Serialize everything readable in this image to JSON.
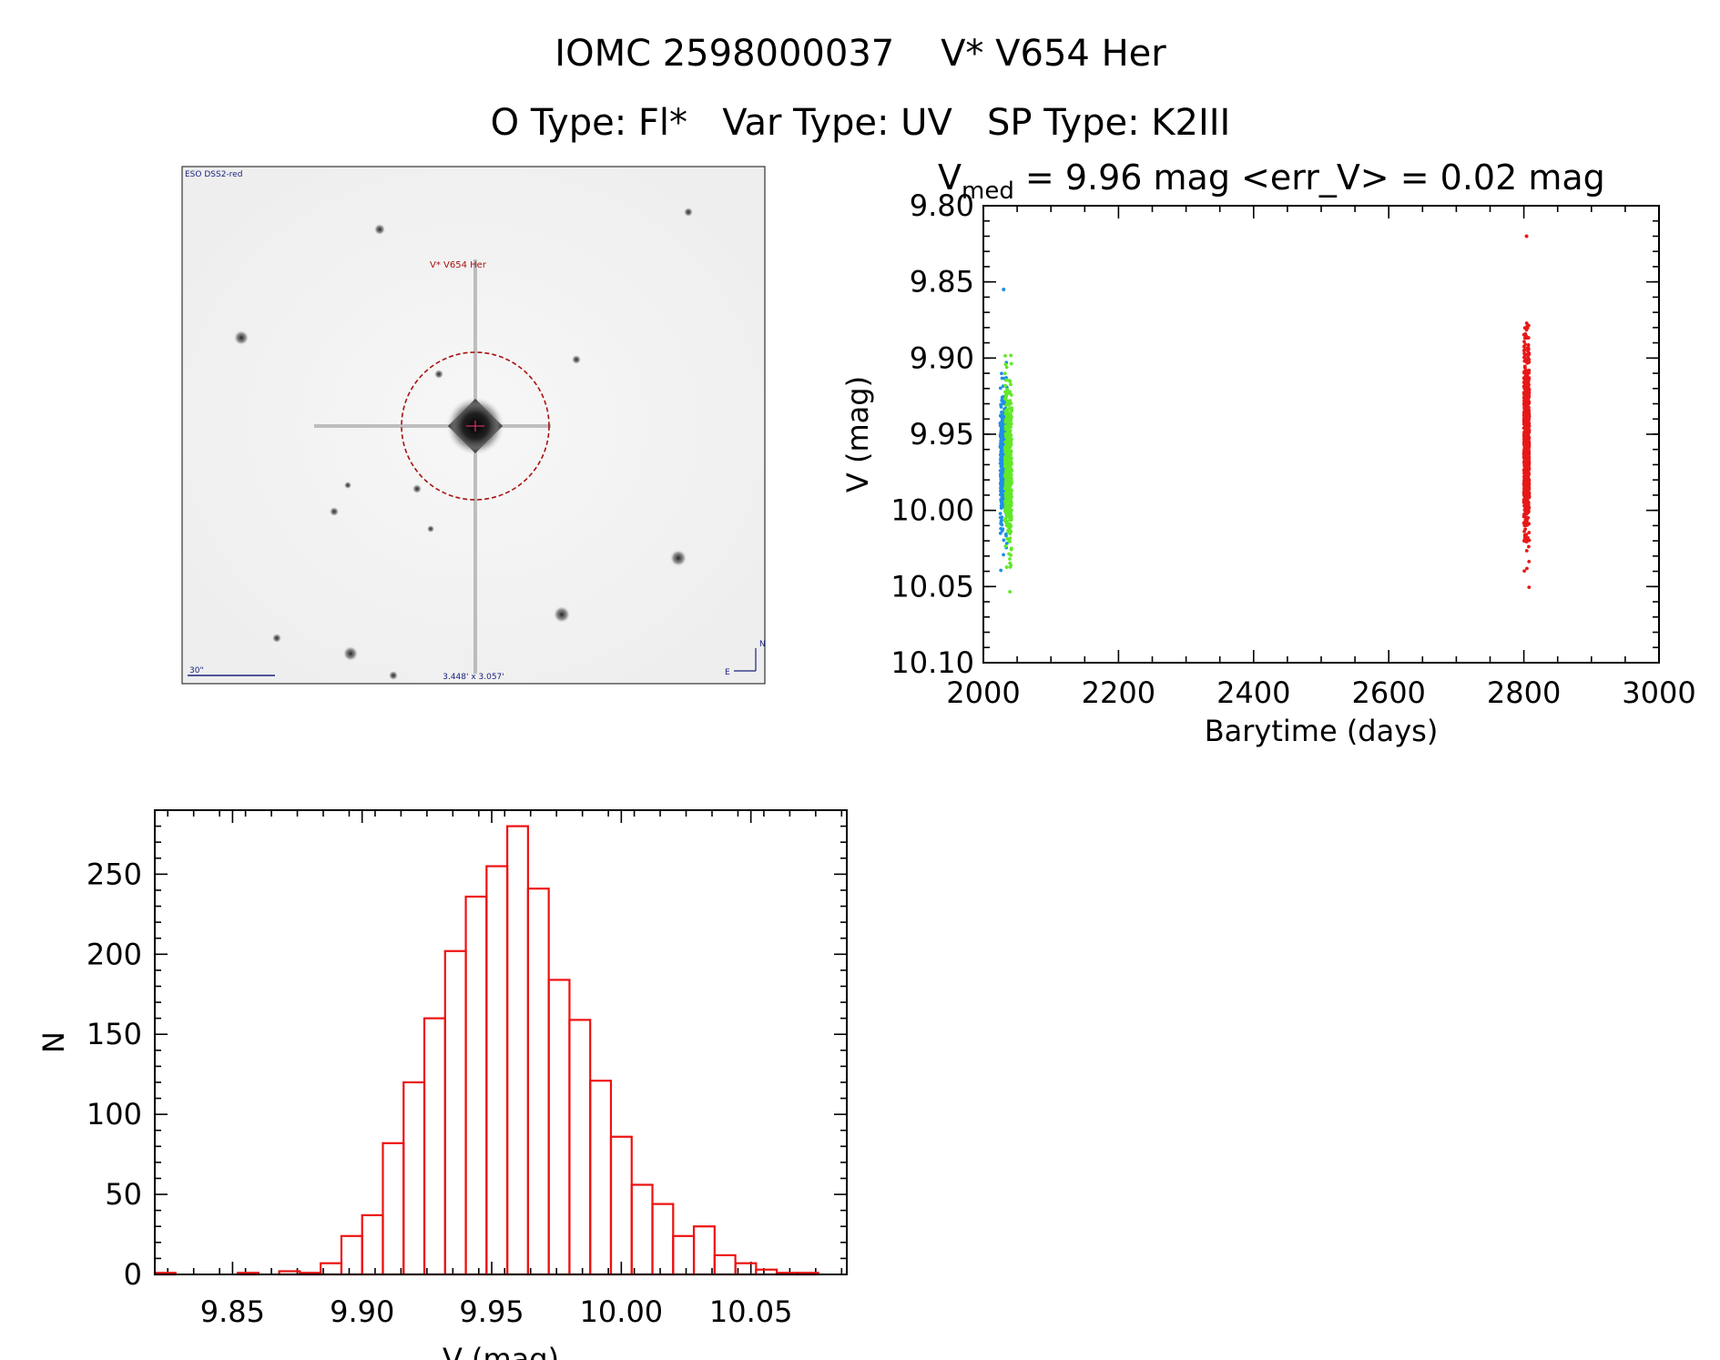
{
  "header": {
    "title": "IOMC 2598000037    V* V654 Her",
    "subtitle": "O Type: Fl*   Var Type: UV   SP Type: K2III"
  },
  "finder": {
    "survey_label": "ESO DSS2-red",
    "object_label": "V* V654 Her",
    "scale_label": "30\"",
    "fov_label": "3.448' x 3.057'",
    "north_label": "N",
    "east_label": "E"
  },
  "lightcurve": {
    "title_v": "V",
    "title_sub": "med",
    "title_rest": " = 9.96 mag <err_V> = 0.02 mag",
    "colors": {
      "blue": "#1f8fe6",
      "green": "#62e82a",
      "red": "#e81818"
    }
  },
  "chart_data": [
    {
      "type": "scatter",
      "title": "V_med = 9.96 mag <err_V> = 0.02 mag",
      "xlabel": "Barytime (days)",
      "ylabel": "V (mag)",
      "xlim": [
        2000,
        3000
      ],
      "ylim": [
        10.1,
        9.8
      ],
      "y_inverted": true,
      "x_ticks": [
        "2000",
        "2200",
        "2400",
        "2600",
        "2800",
        "3000"
      ],
      "y_ticks": [
        "9.80",
        "9.85",
        "9.90",
        "9.95",
        "10.00",
        "10.05",
        "10.10"
      ],
      "series": [
        {
          "color": "#1f8fe6",
          "x_range": [
            2025,
            2035
          ],
          "v_center": 9.965,
          "v_min": 9.89,
          "v_max": 10.04,
          "outliers": [
            9.855
          ]
        },
        {
          "color": "#62e82a",
          "x_range": [
            2032,
            2042
          ],
          "v_center": 9.97,
          "v_min": 9.895,
          "v_max": 10.08,
          "outliers": []
        },
        {
          "color": "#e81818",
          "x_range": [
            2800,
            2808
          ],
          "v_center": 9.955,
          "v_min": 9.875,
          "v_max": 10.075,
          "outliers": [
            9.82
          ]
        }
      ]
    },
    {
      "type": "bar",
      "subtype": "histogram",
      "xlabel": "V (mag)",
      "ylabel": "N",
      "xlim": [
        9.82,
        10.087
      ],
      "ylim": [
        0,
        290
      ],
      "x_ticks": [
        "9.85",
        "9.90",
        "9.95",
        "10.00",
        "10.05"
      ],
      "y_ticks": [
        "0",
        "50",
        "100",
        "150",
        "200",
        "250"
      ],
      "bin_start": 9.82,
      "bin_width": 0.008,
      "values": [
        1,
        0,
        0,
        0,
        1,
        0,
        2,
        1,
        7,
        24,
        37,
        82,
        120,
        160,
        202,
        236,
        255,
        280,
        241,
        184,
        159,
        121,
        86,
        56,
        44,
        24,
        30,
        12,
        7,
        3,
        1,
        1
      ]
    }
  ]
}
